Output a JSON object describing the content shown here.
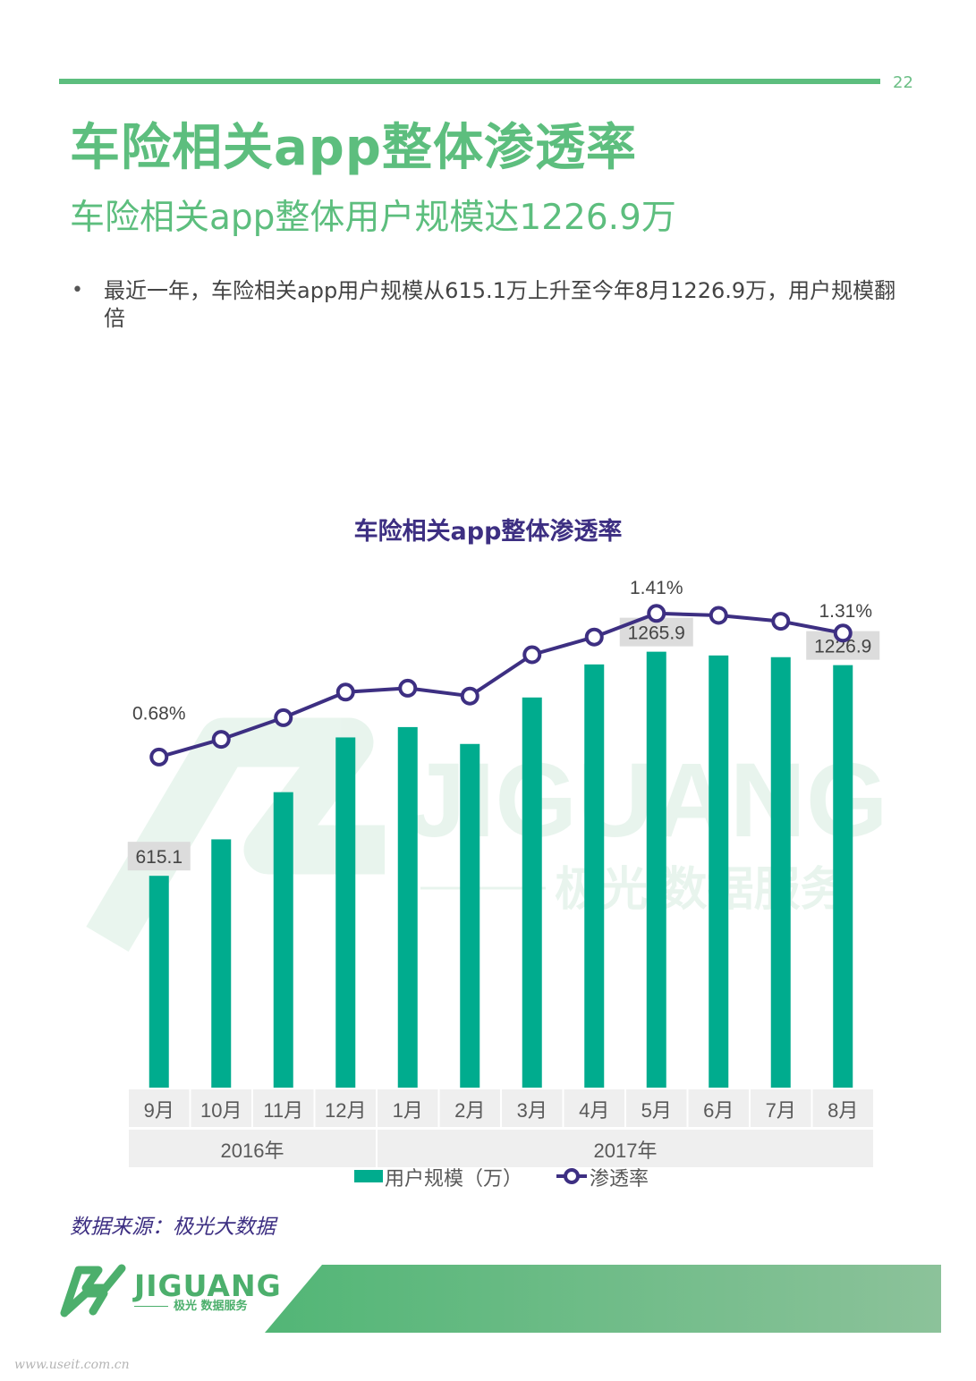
{
  "page": {
    "number": "22",
    "title": "车险相关app整体渗透率",
    "subtitle": "车险相关app整体用户规模达1226.9万",
    "bullet_symbol": "•",
    "bullet": "最近一年，车险相关app用户规模从615.1万上升至今年8月1226.9万，用户规模翻倍",
    "source": "数据来源：极光大数据",
    "logo_text": "JIGUANG",
    "logo_sub": "极光 数据服务",
    "watermark_text": "JIGUANG",
    "watermark_sub": "极光 数据服务",
    "site_mark": "www.useit.com.cn",
    "colors": {
      "brand_green": "#5dbe7e",
      "bar": "#00ac8e",
      "line": "#3d2f82",
      "footer_left": "#52b676",
      "footer_right": "#8cc29a"
    }
  },
  "chart_data": {
    "type": "bar+line",
    "title": "车险相关app整体渗透率",
    "categories": [
      "9月",
      "10月",
      "11月",
      "12月",
      "1月",
      "2月",
      "3月",
      "4月",
      "5月",
      "6月",
      "7月",
      "8月"
    ],
    "groups": [
      {
        "label": "2016年",
        "span": 4
      },
      {
        "label": "2017年",
        "span": 8
      }
    ],
    "series": [
      {
        "name": "用户规模（万）",
        "kind": "bar",
        "axis": "left",
        "color": "#00ac8e",
        "values": [
          615.1,
          721,
          858,
          1017,
          1047,
          998,
          1133,
          1229,
          1265.9,
          1255,
          1250,
          1226.9
        ]
      },
      {
        "name": "渗透率",
        "kind": "line",
        "axis": "right",
        "unit": "%",
        "color": "#3d2f82",
        "values": [
          0.68,
          0.77,
          0.88,
          1.01,
          1.03,
          0.99,
          1.2,
          1.29,
          1.41,
          1.4,
          1.37,
          1.31
        ]
      }
    ],
    "bar_labels": [
      {
        "index": 0,
        "text": "615.1"
      },
      {
        "index": 8,
        "text": "1265.9"
      },
      {
        "index": 11,
        "text": "1226.9"
      }
    ],
    "line_labels": [
      {
        "index": 0,
        "text": "0.68%"
      },
      {
        "index": 8,
        "text": "1.41%"
      },
      {
        "index": 11,
        "text": "1.31%"
      }
    ],
    "left_axis_range": [
      0,
      1600
    ],
    "right_axis_range": [
      -1.0,
      1.8
    ],
    "axes_visible": false,
    "grid": false,
    "legend": "bottom"
  }
}
